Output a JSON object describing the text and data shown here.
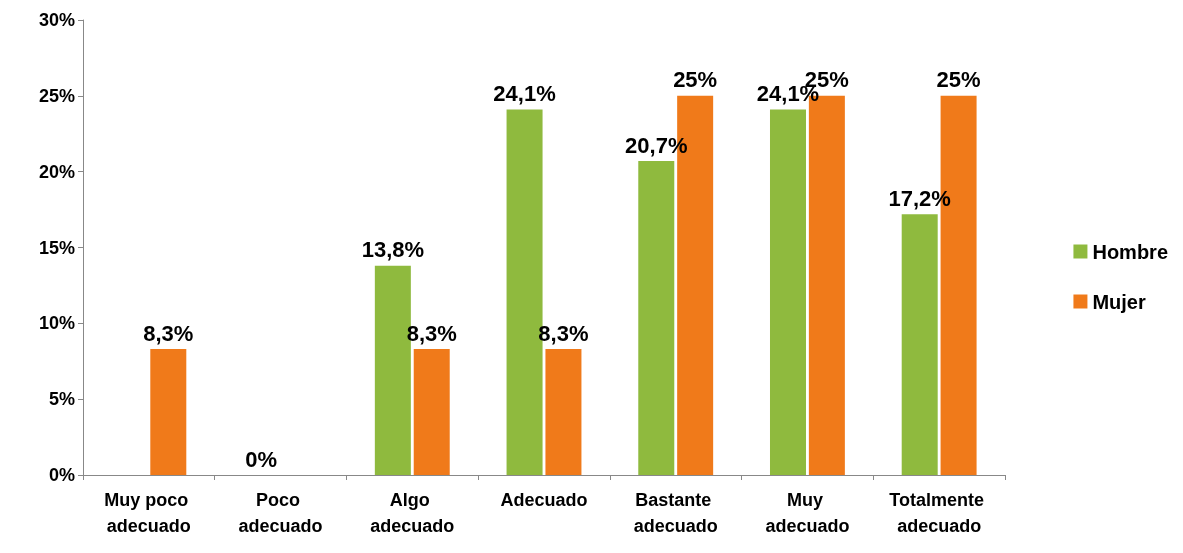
{
  "chart_data": {
    "type": "bar",
    "categories": [
      "Muy poco adecuado",
      "Poco adecuado",
      "Algo adecuado",
      "Adecuado",
      "Bastante adecuado",
      "Muy adecuado",
      "Totalmente adecuado"
    ],
    "series": [
      {
        "name": "Hombre",
        "color": "#8fba3e",
        "values": [
          0,
          0,
          13.8,
          24.1,
          20.7,
          24.1,
          17.2
        ],
        "value_labels": [
          null,
          "0%",
          "13,8%",
          "24,1%",
          "20,7%",
          "24,1%",
          "17,2%"
        ]
      },
      {
        "name": "Mujer",
        "color": "#f07a1a",
        "values": [
          8.3,
          0,
          8.3,
          8.3,
          25,
          25,
          25
        ],
        "value_labels": [
          "8,3%",
          null,
          "8,3%",
          "8,3%",
          "25%",
          "25%",
          "25%"
        ]
      }
    ],
    "ylim": [
      0,
      30
    ],
    "yticks": [
      {
        "value": 0,
        "label": "0%"
      },
      {
        "value": 5,
        "label": "5%"
      },
      {
        "value": 10,
        "label": "10%"
      },
      {
        "value": 15,
        "label": "15%"
      },
      {
        "value": 20,
        "label": "20%"
      },
      {
        "value": 25,
        "label": "25%"
      },
      {
        "value": 30,
        "label": "30%"
      }
    ],
    "grid": false,
    "legend": "right"
  }
}
